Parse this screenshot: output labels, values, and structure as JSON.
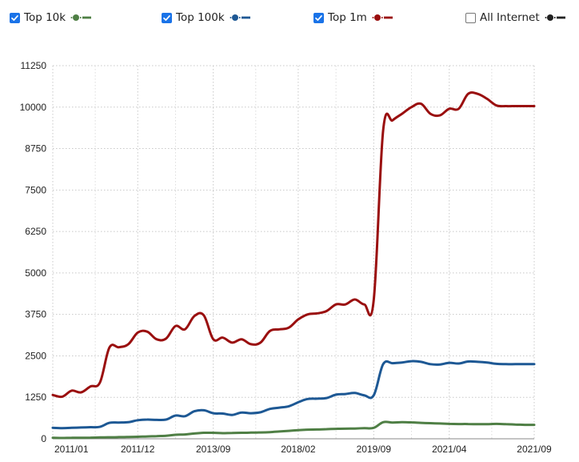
{
  "legend": [
    {
      "label": "Top 10k",
      "checked": true,
      "color": "#4f7f45"
    },
    {
      "label": "Top 100k",
      "checked": true,
      "color": "#1d5894"
    },
    {
      "label": "Top 1m",
      "checked": true,
      "color": "#9a0f0f"
    },
    {
      "label": "All Internet",
      "checked": false,
      "color": "#222222"
    }
  ],
  "chart_data": {
    "type": "line",
    "ylim": [
      0,
      11250
    ],
    "yticks": [
      "11250",
      "10000",
      "8750",
      "7500",
      "6250",
      "5000",
      "3750",
      "2500",
      "1250",
      "0"
    ],
    "xticks": [
      "2011/01",
      "2011/12",
      "2013/09",
      "2018/02",
      "2019/09",
      "2021/04",
      "2021/09"
    ],
    "grid": true,
    "legend_position": "top",
    "series": [
      {
        "name": "Top 10k",
        "color": "#4f7f45",
        "points": [
          [
            0,
            30
          ],
          [
            0.5,
            25
          ],
          [
            1,
            30
          ],
          [
            1.5,
            30
          ],
          [
            2,
            35
          ],
          [
            2.5,
            40
          ],
          [
            3,
            45
          ],
          [
            3.5,
            50
          ],
          [
            4,
            55
          ],
          [
            4.5,
            60
          ],
          [
            5,
            70
          ],
          [
            5.5,
            80
          ],
          [
            6,
            90
          ],
          [
            6.5,
            120
          ],
          [
            7,
            130
          ],
          [
            7.5,
            160
          ],
          [
            8,
            180
          ],
          [
            8.5,
            180
          ],
          [
            9,
            170
          ],
          [
            9.5,
            175
          ],
          [
            10,
            180
          ],
          [
            10.5,
            185
          ],
          [
            11,
            190
          ],
          [
            11.5,
            200
          ],
          [
            12,
            220
          ],
          [
            12.5,
            240
          ],
          [
            13,
            260
          ],
          [
            13.5,
            275
          ],
          [
            14,
            280
          ],
          [
            14.5,
            290
          ],
          [
            15,
            300
          ],
          [
            15.5,
            305
          ],
          [
            16,
            310
          ],
          [
            16.5,
            320
          ],
          [
            17,
            330
          ],
          [
            17.5,
            500
          ],
          [
            18,
            490
          ],
          [
            18.5,
            500
          ],
          [
            19,
            495
          ],
          [
            19.5,
            480
          ],
          [
            20,
            470
          ],
          [
            20.5,
            460
          ],
          [
            21,
            450
          ],
          [
            21.5,
            445
          ],
          [
            22,
            445
          ],
          [
            22.5,
            440
          ],
          [
            23,
            440
          ],
          [
            23.5,
            450
          ],
          [
            24,
            440
          ],
          [
            24.5,
            430
          ],
          [
            25,
            420
          ],
          [
            25.5,
            420
          ]
        ]
      },
      {
        "name": "Top 100k",
        "color": "#1d5894",
        "points": [
          [
            0,
            330
          ],
          [
            0.5,
            320
          ],
          [
            1,
            330
          ],
          [
            1.5,
            340
          ],
          [
            2,
            350
          ],
          [
            2.5,
            360
          ],
          [
            3,
            480
          ],
          [
            3.5,
            490
          ],
          [
            4,
            500
          ],
          [
            4.5,
            560
          ],
          [
            5,
            580
          ],
          [
            5.5,
            570
          ],
          [
            6,
            580
          ],
          [
            6.5,
            700
          ],
          [
            7,
            680
          ],
          [
            7.5,
            830
          ],
          [
            8,
            860
          ],
          [
            8.5,
            770
          ],
          [
            9,
            760
          ],
          [
            9.5,
            720
          ],
          [
            10,
            790
          ],
          [
            10.5,
            770
          ],
          [
            11,
            800
          ],
          [
            11.5,
            900
          ],
          [
            12,
            940
          ],
          [
            12.5,
            980
          ],
          [
            13,
            1100
          ],
          [
            13.5,
            1200
          ],
          [
            14,
            1210
          ],
          [
            14.5,
            1230
          ],
          [
            15,
            1330
          ],
          [
            15.5,
            1350
          ],
          [
            16,
            1380
          ],
          [
            16.5,
            1310
          ],
          [
            17,
            1310
          ],
          [
            17.5,
            2250
          ],
          [
            18,
            2280
          ],
          [
            18.5,
            2300
          ],
          [
            19,
            2340
          ],
          [
            19.5,
            2320
          ],
          [
            20,
            2250
          ],
          [
            20.5,
            2240
          ],
          [
            21,
            2290
          ],
          [
            21.5,
            2270
          ],
          [
            22,
            2330
          ],
          [
            22.5,
            2320
          ],
          [
            23,
            2300
          ],
          [
            23.5,
            2260
          ],
          [
            24,
            2250
          ],
          [
            24.5,
            2250
          ],
          [
            25,
            2250
          ],
          [
            25.5,
            2250
          ]
        ]
      },
      {
        "name": "Top 1m",
        "color": "#9a0f0f",
        "points": [
          [
            0,
            1320
          ],
          [
            0.5,
            1270
          ],
          [
            1,
            1450
          ],
          [
            1.5,
            1400
          ],
          [
            2,
            1580
          ],
          [
            2.5,
            1700
          ],
          [
            3,
            2750
          ],
          [
            3.5,
            2760
          ],
          [
            4,
            2850
          ],
          [
            4.5,
            3200
          ],
          [
            5,
            3230
          ],
          [
            5.5,
            3000
          ],
          [
            6,
            3020
          ],
          [
            6.5,
            3400
          ],
          [
            7,
            3300
          ],
          [
            7.5,
            3700
          ],
          [
            8,
            3720
          ],
          [
            8.5,
            3000
          ],
          [
            9,
            3050
          ],
          [
            9.5,
            2900
          ],
          [
            10,
            3000
          ],
          [
            10.5,
            2850
          ],
          [
            11,
            2900
          ],
          [
            11.5,
            3250
          ],
          [
            12,
            3300
          ],
          [
            12.5,
            3350
          ],
          [
            13,
            3600
          ],
          [
            13.5,
            3750
          ],
          [
            14,
            3780
          ],
          [
            14.5,
            3850
          ],
          [
            15,
            4050
          ],
          [
            15.5,
            4050
          ],
          [
            16,
            4200
          ],
          [
            16.5,
            4050
          ],
          [
            17,
            4180
          ],
          [
            17.5,
            9300
          ],
          [
            18,
            9600
          ],
          [
            18.5,
            9800
          ],
          [
            19,
            10000
          ],
          [
            19.5,
            10100
          ],
          [
            20,
            9800
          ],
          [
            20.5,
            9750
          ],
          [
            21,
            9950
          ],
          [
            21.5,
            9950
          ],
          [
            22,
            10400
          ],
          [
            22.5,
            10400
          ],
          [
            23,
            10250
          ],
          [
            23.5,
            10050
          ],
          [
            24,
            10030
          ],
          [
            24.5,
            10030
          ],
          [
            25,
            10030
          ],
          [
            25.5,
            10030
          ]
        ]
      }
    ]
  }
}
